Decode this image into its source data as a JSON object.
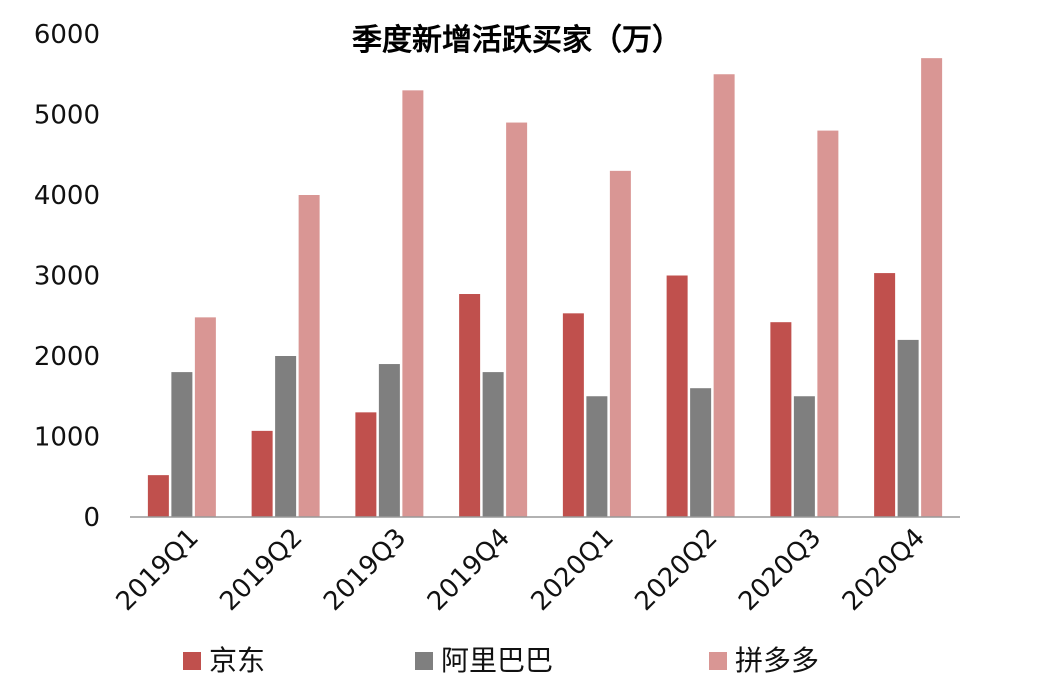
{
  "chart_data": {
    "type": "bar",
    "title": "季度新增活跃买家（万）",
    "xlabel": "",
    "ylabel": "",
    "categories": [
      "2019Q1",
      "2019Q2",
      "2019Q3",
      "2019Q4",
      "2020Q1",
      "2020Q2",
      "2020Q3",
      "2020Q4"
    ],
    "series": [
      {
        "name": "京东",
        "values": [
          520,
          1070,
          1300,
          2770,
          2530,
          3000,
          2420,
          3030
        ]
      },
      {
        "name": "阿里巴巴",
        "values": [
          1800,
          2000,
          1900,
          1800,
          1500,
          1600,
          1500,
          2200
        ]
      },
      {
        "name": "拼多多",
        "values": [
          2480,
          4000,
          5300,
          4900,
          4300,
          5500,
          4800,
          5700
        ]
      }
    ],
    "ylim": [
      0,
      6000
    ],
    "yticks": [
      0,
      1000,
      2000,
      3000,
      4000,
      5000,
      6000
    ],
    "grid": false,
    "legend_position": "bottom",
    "colors": [
      "#c0504d",
      "#7f7f7f",
      "#d99694"
    ]
  }
}
